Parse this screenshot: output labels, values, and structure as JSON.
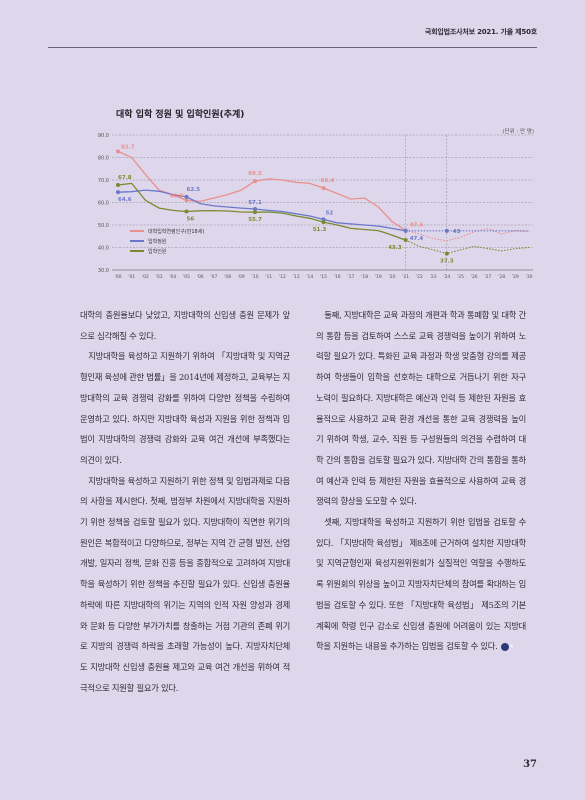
{
  "header": {
    "running_head": "국회입법조사처보 2021. 가을 제50호"
  },
  "chart_data": {
    "type": "line",
    "title": "대학 입학 정원 및 입학인원(추계)",
    "unit": "(단위 : 만 명)",
    "x": [
      "'00",
      "'01",
      "'02",
      "'03",
      "'04",
      "'05",
      "'06",
      "'07",
      "'08",
      "'09",
      "'10",
      "'11",
      "'12",
      "'13",
      "'14",
      "'15",
      "'16",
      "'17",
      "'18",
      "'19",
      "'20",
      "'21",
      "'22",
      "'23",
      "'24",
      "'25",
      "'26",
      "'27",
      "'28",
      "'29",
      "'30"
    ],
    "ylim": [
      30,
      90
    ],
    "yticks": [
      "30.0",
      "40.0",
      "50.0",
      "60.0",
      "70.0",
      "80.0",
      "90.0"
    ],
    "series": [
      {
        "name": "대학입학연령인구(만18세)",
        "color": "#e8908c",
        "values": [
          82.7,
          80,
          72.5,
          65.5,
          63.5,
          61,
          60.5,
          62,
          63.5,
          65.5,
          69.5,
          70.5,
          70,
          69,
          68.5,
          66.4,
          64,
          61.5,
          62,
          58,
          51.5,
          47.6,
          46,
          44,
          43,
          44.5,
          47,
          48.5,
          46,
          47.5,
          47
        ]
      },
      {
        "name": "입학정원",
        "color": "#6b78c8",
        "values": [
          64.6,
          64.8,
          65.5,
          65,
          63.5,
          62.5,
          59.5,
          58.5,
          58,
          57.5,
          57.1,
          56.5,
          56,
          55,
          54,
          52.5,
          51,
          50.5,
          50,
          49.5,
          48.5,
          47.4,
          47.4,
          47.4,
          47.4,
          47.4,
          47.4,
          47.4,
          47.4,
          47.4,
          47.4
        ]
      },
      {
        "name": "입학인원",
        "color": "#7a8a2e",
        "values": [
          67.8,
          68.5,
          61,
          57.5,
          56.5,
          56,
          56.3,
          56.4,
          56.2,
          55.8,
          55.7,
          55.8,
          55.3,
          54,
          53,
          51.3,
          50,
          48.5,
          48,
          47.5,
          45.5,
          43.3,
          40.5,
          39,
          37.3,
          39,
          40.5,
          39.5,
          38.5,
          39.5,
          40
        ]
      }
    ],
    "labels": [
      {
        "text": "82.7"
      },
      {
        "text": "67.8"
      },
      {
        "text": "64.6"
      },
      {
        "text": "60.9"
      },
      {
        "text": "62.5"
      },
      {
        "text": "56"
      },
      {
        "text": "69.5"
      },
      {
        "text": "57.1"
      },
      {
        "text": "55.7"
      },
      {
        "text": "66.4"
      },
      {
        "text": "52"
      },
      {
        "text": "51.3"
      },
      {
        "text": "47.6"
      },
      {
        "text": "47.4"
      },
      {
        "text": "43.3"
      },
      {
        "text": "43"
      },
      {
        "text": "37.3"
      }
    ],
    "legend_placement": "bottom-left",
    "grid": true
  },
  "body": {
    "left": [
      "대학의 충원율보다 낮았고, 지방대학의 신입생 충원 문제가 앞으로 심각해질 수 있다.",
      "지방대학을 육성하고 지원하기 위하여 「지방대학 및 지역균형인재 육성에 관한 법률」을 2014년에 제정하고, 교육부는 지방대학의 교육 경쟁력 강화를 위하여 다양한 정책을 수립하여 운영하고 있다. 하지만 지방대학 육성과 지원을 위한 정책과 입법이 지방대학의 경쟁력 강화와 교육 여건 개선에 부족했다는 의견이 있다.",
      "지방대학을 육성하고 지원하기 위한 정책 및 입법과제로 다음의 사항을 제시한다. 첫째, 범정부 차원에서 지방대학을 지원하기 위한 정책을 검토할 필요가 있다. 지방대학이 직면한 위기의 원인은 복합적이고 다양하므로, 정부는 지역 간 균형 발전, 산업 개발, 일자리 정책, 문화 진흥 등을 종합적으로 고려하여 지방대학을 육성하기 위한 정책을 추진할 필요가 있다. 신입생 충원율 하락에 따른 지방대학의 위기는 지역의 인적 자원 양성과 경제와 문화 등 다양한 부가가치를 창출하는 거점 기관의 존폐 위기로 지방의 경쟁력 하락을 초래할 가능성이 높다. 지방자치단체도 지방대학 신입생 충원율 제고와 교육 여건 개선을 위하여 적극적으로 지원할 필요가 있다."
    ],
    "right": [
      "둘째, 지방대학은 교육 과정의 개편과 학과 통폐합 및 대학 간의 통합 등을 검토하여 스스로 교육 경쟁력을 높이기 위하여 노력할 필요가 있다. 특화된 교육 과정과 학생 맞춤형 강의를 제공하여 학생들이 입학을 선호하는 대학으로 거듭나기 위한 자구 노력이 필요하다. 지방대학은 예산과 인력 등 제한된 자원을 효율적으로 사용하고 교육 환경 개선을 통한 교육 경쟁력을 높이기 위하여 학생, 교수, 직원 등 구성원들의 의견을 수렴하여 대학 간의 통합을 검토할 필요가 있다. 지방대학 간의 통합을 통하여 예산과 인력 등 제한된 자원을 효율적으로 사용하여 교육 경쟁력의 향상을 도모할 수 있다.",
      "셋째, 지방대학을 육성하고 지원하기 위한 입법을 검토할 수 있다. 「지방대학 육성법」 제8조에 근거하여 설치한 지방대학 및 지역균형인재 육성지원위원회가 실질적인 역할을 수행하도록 위원회의 위상을 높이고 지방자치단체의 참여를 확대하는 입법을 검토할 수 있다. 또한 「지방대학 육성법」 제5조의 기본 계획에 학령 인구 감소로 신입생 충원에 어려움이 있는 지방대학을 지원하는 내용을 추가하는 입법을 검토할 수 있다."
    ],
    "end_mark": "✕"
  },
  "footer": {
    "page_number": "37"
  }
}
